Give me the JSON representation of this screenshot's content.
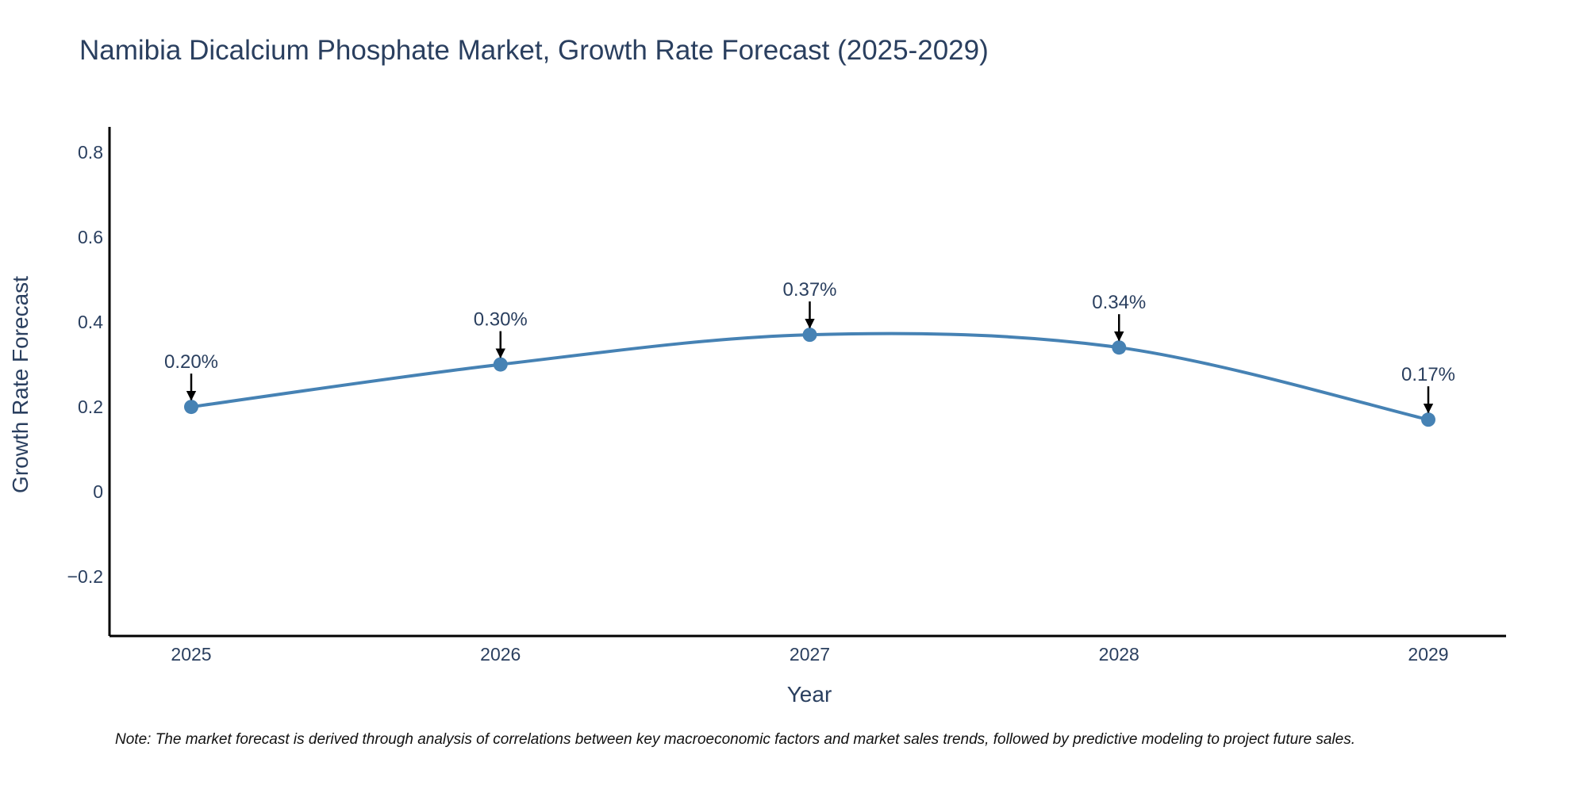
{
  "chart_data": {
    "type": "line",
    "title": "Namibia Dicalcium Phosphate Market, Growth Rate Forecast (2025-2029)",
    "xlabel": "Year",
    "ylabel": "Growth Rate Forecast",
    "categories": [
      "2025",
      "2026",
      "2027",
      "2028",
      "2029"
    ],
    "values": [
      0.2,
      0.3,
      0.37,
      0.34,
      0.17
    ],
    "data_labels": [
      "0.20%",
      "0.30%",
      "0.37%",
      "0.34%",
      "0.17%"
    ],
    "yticks": [
      -0.2,
      0,
      0.2,
      0.4,
      0.6,
      0.8
    ],
    "ytick_labels": [
      "−0.2",
      "0",
      "0.2",
      "0.4",
      "0.6",
      "0.8"
    ],
    "ylim": [
      -0.34,
      0.86
    ],
    "grid": false,
    "line_shape": "spline",
    "line_color": "#4682b4",
    "marker_color": "#4682b4",
    "annotation_arrow_color": "#000000"
  },
  "note": "Note: The market forecast is derived through analysis of correlations between key macroeconomic factors and market sales trends, followed by predictive modeling to project future sales."
}
